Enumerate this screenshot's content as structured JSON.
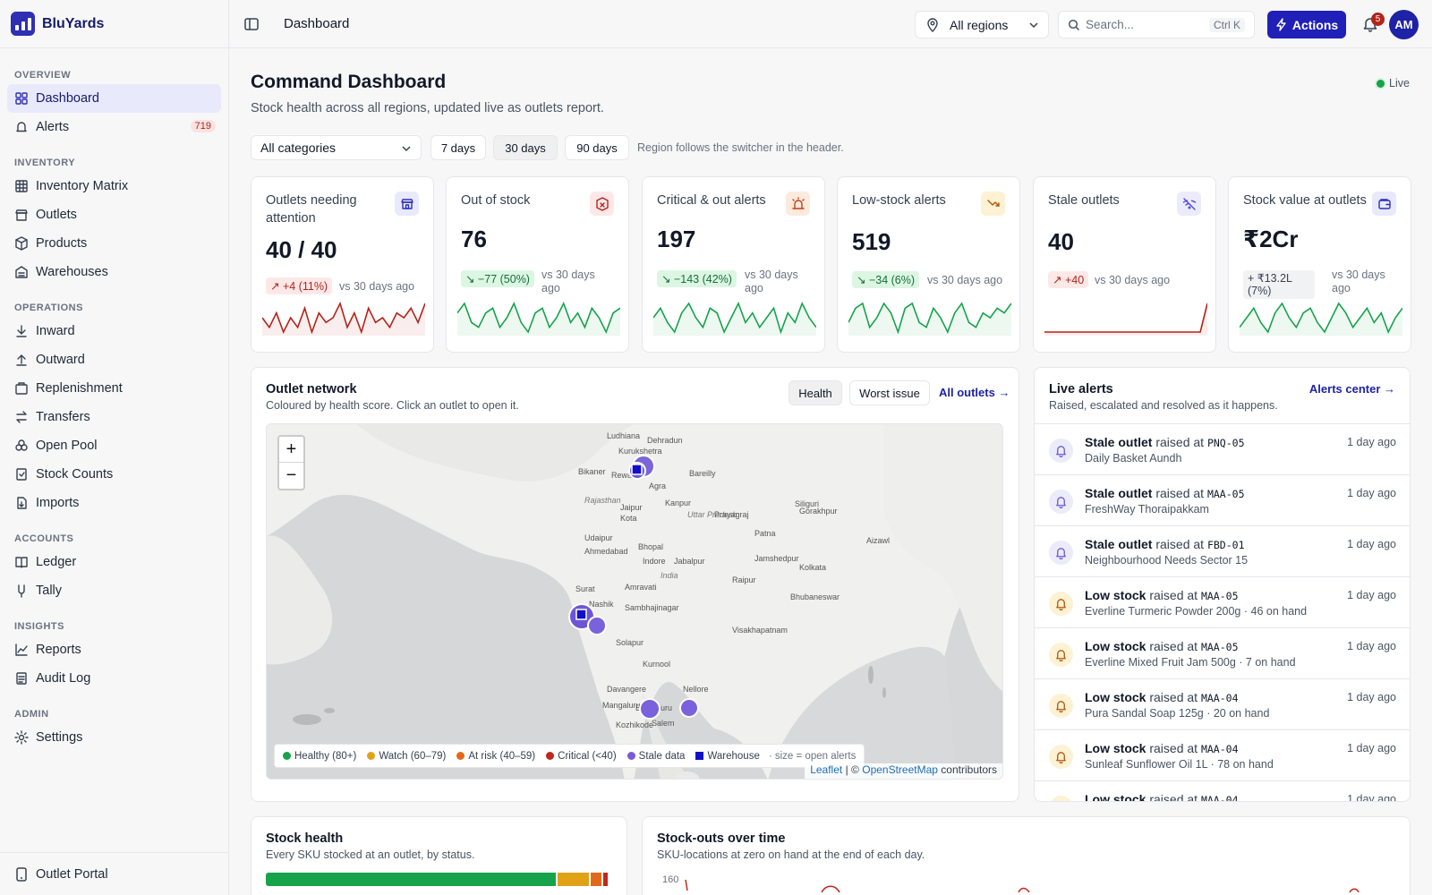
{
  "brand": {
    "name": "BluYards"
  },
  "sidebar": {
    "sections": [
      {
        "title": "OVERVIEW",
        "items": [
          {
            "label": "Dashboard"
          },
          {
            "label": "Alerts",
            "badge": "719"
          }
        ]
      },
      {
        "title": "INVENTORY",
        "items": [
          {
            "label": "Inventory Matrix"
          },
          {
            "label": "Outlets"
          },
          {
            "label": "Products"
          },
          {
            "label": "Warehouses"
          }
        ]
      },
      {
        "title": "OPERATIONS",
        "items": [
          {
            "label": "Inward"
          },
          {
            "label": "Outward"
          },
          {
            "label": "Replenishment"
          },
          {
            "label": "Transfers"
          },
          {
            "label": "Open Pool"
          },
          {
            "label": "Stock Counts"
          },
          {
            "label": "Imports"
          }
        ]
      },
      {
        "title": "ACCOUNTS",
        "items": [
          {
            "label": "Ledger"
          },
          {
            "label": "Tally"
          }
        ]
      },
      {
        "title": "INSIGHTS",
        "items": [
          {
            "label": "Reports"
          },
          {
            "label": "Audit Log"
          }
        ]
      },
      {
        "title": "ADMIN",
        "items": [
          {
            "label": "Settings"
          }
        ]
      }
    ],
    "footer": {
      "label": "Outlet Portal"
    }
  },
  "header": {
    "breadcrumb": "Dashboard",
    "region": "All regions",
    "search_placeholder": "Search...",
    "shortcut": "Ctrl K",
    "actions_label": "Actions",
    "notifications": "5",
    "avatar": "AM"
  },
  "page": {
    "title": "Command Dashboard",
    "subtitle": "Stock health across all regions, updated live as outlets report.",
    "live": "Live",
    "category": "All categories",
    "ranges": [
      "7 days",
      "30 days",
      "90 days"
    ],
    "selected_range": "30 days",
    "range_note": "Region follows the switcher in the header."
  },
  "kpis": [
    {
      "title": "Outlets needing attention",
      "value": "40 / 40",
      "delta": "+4 (11%)",
      "delta_dir": "up",
      "note": "vs 30 days ago",
      "icon": "store-icon",
      "spark_color": "#b42318",
      "spark": [
        5,
        3,
        6,
        2,
        5,
        3,
        7,
        2,
        6,
        4,
        5,
        8,
        3,
        6,
        2,
        7,
        4,
        5,
        3,
        6,
        5,
        7,
        4,
        8
      ]
    },
    {
      "title": "Out of stock",
      "value": "76",
      "delta": "−77 (50%)",
      "delta_dir": "down",
      "note": "vs 30 days ago",
      "icon": "package-x-icon",
      "spark_color": "#16a34a",
      "spark": [
        6,
        8,
        4,
        3,
        6,
        7,
        3,
        5,
        8,
        4,
        2,
        6,
        7,
        3,
        5,
        8,
        4,
        6,
        3,
        7,
        5,
        2,
        6,
        7
      ]
    },
    {
      "title": "Critical & out alerts",
      "value": "197",
      "delta": "−143 (42%)",
      "delta_dir": "down",
      "note": "vs 30 days ago",
      "icon": "siren-icon",
      "spark_color": "#16a34a",
      "spark": [
        5,
        7,
        4,
        2,
        6,
        8,
        5,
        3,
        7,
        6,
        2,
        5,
        8,
        4,
        6,
        3,
        5,
        7,
        2,
        6,
        4,
        8,
        5,
        3
      ]
    },
    {
      "title": "Low-stock alerts",
      "value": "519",
      "delta": "−34 (6%)",
      "delta_dir": "down",
      "note": "vs 30 days ago",
      "icon": "trend-down-icon",
      "spark_color": "#16a34a",
      "spark": [
        4,
        7,
        8,
        3,
        5,
        8,
        6,
        2,
        7,
        8,
        4,
        3,
        7,
        5,
        2,
        6,
        8,
        4,
        3,
        6,
        5,
        7,
        6,
        8
      ]
    },
    {
      "title": "Stale outlets",
      "value": "40",
      "delta": "+40",
      "delta_dir": "up",
      "note": "vs 30 days ago",
      "icon": "wifi-off-icon",
      "spark_color": "#b42318",
      "spark": [
        1,
        1,
        1,
        1,
        1,
        1,
        1,
        1,
        1,
        1,
        1,
        1,
        1,
        1,
        1,
        1,
        1,
        1,
        1,
        1,
        1,
        1,
        1,
        9
      ]
    },
    {
      "title": "Stock value at outlets",
      "value": "₹2Cr",
      "delta": "+ ₹13.2L (7%)",
      "delta_dir": "neutral",
      "note": "vs 30 days ago",
      "icon": "wallet-icon",
      "spark_color": "#16a34a",
      "spark": [
        3,
        5,
        7,
        4,
        2,
        6,
        8,
        5,
        3,
        6,
        7,
        4,
        2,
        5,
        8,
        6,
        3,
        5,
        7,
        4,
        6,
        2,
        5,
        7
      ]
    }
  ],
  "network": {
    "title": "Outlet network",
    "subtitle": "Coloured by health score. Click an outlet to open it.",
    "modes": [
      "Health",
      "Worst issue"
    ],
    "selected_mode": "Health",
    "link": "All outlets →",
    "legend": [
      {
        "label": "Healthy (80+)",
        "color": "#16a34a",
        "shape": "dot"
      },
      {
        "label": "Watch (60–79)",
        "color": "#e0a317",
        "shape": "dot"
      },
      {
        "label": "At risk (40–59)",
        "color": "#e06a1a",
        "shape": "dot"
      },
      {
        "label": "Critical (<40)",
        "color": "#c0281e",
        "shape": "dot"
      },
      {
        "label": "Stale data",
        "color": "#7a5ad6",
        "shape": "dot"
      },
      {
        "label": "Warehouse",
        "color": "#1010c8",
        "shape": "square"
      }
    ],
    "legend_note": "· size = open alerts",
    "attribution": {
      "leaflet": "Leaflet",
      "sep": "|",
      "copy": "©",
      "osm": "OpenStreetMap",
      "rest": "contributors"
    },
    "place_labels": [
      "Ludhiana",
      "Dehradun",
      "Kurukshetra",
      "Bikaner",
      "Rewari",
      "Bareilly",
      "Agra",
      "Kanpur",
      "Uttar Pradesh",
      "Gorakhpur",
      "Siliguri",
      "Jaipur",
      "Rajasthan",
      "Kota",
      "Prayagraj",
      "Patna",
      "Udaipur",
      "Bhopal",
      "Jabalpur",
      "Jamshedpur",
      "Ahmedabad",
      "Indore",
      "India",
      "Kolkata",
      "Surat",
      "Amravati",
      "Raipur",
      "Bhubaneswar",
      "Nashik",
      "Sambhajinagar",
      "Solapur",
      "Visakhapatnam",
      "Kurnool",
      "Davangere",
      "Nellore",
      "Mangaluru",
      "Salem",
      "Kozhikode",
      "Bengaluru",
      "Aizawl"
    ]
  },
  "alerts": {
    "title": "Live alerts",
    "subtitle": "Raised, escalated and resolved as it happens.",
    "link": "Alerts center →",
    "raised_word": "raised at",
    "items": [
      {
        "type": "Stale outlet",
        "code": "PNQ-05",
        "detail": "Daily Basket Aundh",
        "time": "1 day ago",
        "kind": "stale"
      },
      {
        "type": "Stale outlet",
        "code": "MAA-05",
        "detail": "FreshWay Thoraipakkam",
        "time": "1 day ago",
        "kind": "stale"
      },
      {
        "type": "Stale outlet",
        "code": "FBD-01",
        "detail": "Neighbourhood Needs Sector 15",
        "time": "1 day ago",
        "kind": "stale"
      },
      {
        "type": "Low stock",
        "code": "MAA-05",
        "detail": "Everline Turmeric Powder 200g · 46 on hand",
        "time": "1 day ago",
        "kind": "low"
      },
      {
        "type": "Low stock",
        "code": "MAA-05",
        "detail": "Everline Mixed Fruit Jam 500g · 7 on hand",
        "time": "1 day ago",
        "kind": "low"
      },
      {
        "type": "Low stock",
        "code": "MAA-04",
        "detail": "Pura Sandal Soap 125g · 20 on hand",
        "time": "1 day ago",
        "kind": "low"
      },
      {
        "type": "Low stock",
        "code": "MAA-04",
        "detail": "Sunleaf Sunflower Oil 1L · 78 on hand",
        "time": "1 day ago",
        "kind": "low"
      },
      {
        "type": "Low stock",
        "code": "MAA-04",
        "detail": "",
        "time": "1 day ago",
        "kind": "low"
      }
    ]
  },
  "stock_health": {
    "title": "Stock health",
    "subtitle": "Every SKU stocked at an outlet, by status.",
    "segments": [
      {
        "status": "healthy",
        "fraction": 0.836,
        "color": "#16a34a"
      },
      {
        "status": "watch",
        "fraction": 0.09,
        "color": "#e0a317"
      },
      {
        "status": "at risk",
        "fraction": 0.03,
        "color": "#e06a1a"
      },
      {
        "status": "critical",
        "fraction": 0.014,
        "color": "#c0281e"
      }
    ]
  },
  "stockouts": {
    "title": "Stock-outs over time",
    "subtitle": "SKU-locations at zero on hand at the end of each day.",
    "y_tick": "160"
  }
}
